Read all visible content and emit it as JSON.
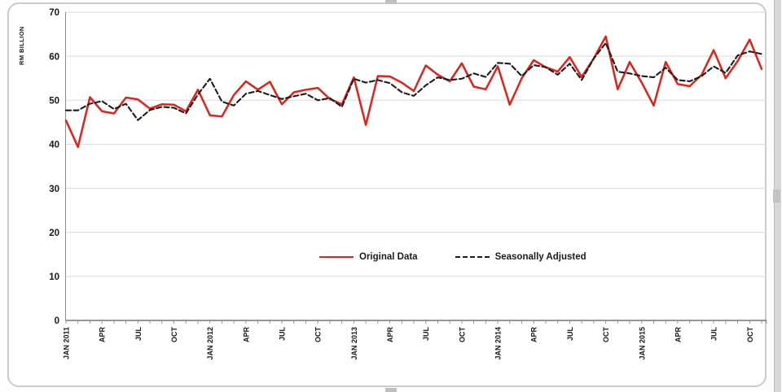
{
  "axis": {
    "y_title": "RM BILLION",
    "y_ticks": [
      0,
      10,
      20,
      30,
      40,
      50,
      60,
      70
    ],
    "x_tick_labels": [
      "JAN 2011",
      "APR",
      "JUL",
      "OCT",
      "JAN 2012",
      "APR",
      "JUL",
      "OCT",
      "JAN 2013",
      "APR",
      "JUL",
      "OCT",
      "JAN 2014",
      "APR",
      "JUL",
      "OCT",
      "JAN 2015",
      "APR",
      "JUL",
      "OCT"
    ]
  },
  "legend": {
    "original_label": "Original Data",
    "adjusted_label": "Seasonally Adjusted"
  },
  "colors": {
    "original_line": "#e32119",
    "adjusted_line": "#1c1c1c",
    "gridline": "#d9d9d9",
    "axis_line": "#8c8c8c",
    "tick": "#8c8c8c",
    "label_text": "#1a1a1a"
  },
  "chart_data": {
    "type": "line",
    "title": "",
    "xlabel": "",
    "ylabel": "RM BILLION",
    "ylim": [
      0,
      70
    ],
    "y_step": 10,
    "grid": true,
    "legend_position": "inside-plot-center-bottom",
    "x_label_every": 3,
    "categories": [
      "JAN 2011",
      "FEB 2011",
      "MAR 2011",
      "APR 2011",
      "MAY 2011",
      "JUN 2011",
      "JUL 2011",
      "AUG 2011",
      "SEP 2011",
      "OCT 2011",
      "NOV 2011",
      "DEC 2011",
      "JAN 2012",
      "FEB 2012",
      "MAR 2012",
      "APR 2012",
      "MAY 2012",
      "JUN 2012",
      "JUL 2012",
      "AUG 2012",
      "SEP 2012",
      "OCT 2012",
      "NOV 2012",
      "DEC 2012",
      "JAN 2013",
      "FEB 2013",
      "MAR 2013",
      "APR 2013",
      "MAY 2013",
      "JUN 2013",
      "JUL 2013",
      "AUG 2013",
      "SEP 2013",
      "OCT 2013",
      "NOV 2013",
      "DEC 2013",
      "JAN 2014",
      "FEB 2014",
      "MAR 2014",
      "APR 2014",
      "MAY 2014",
      "JUN 2014",
      "JUL 2014",
      "AUG 2014",
      "SEP 2014",
      "OCT 2014",
      "NOV 2014",
      "DEC 2014",
      "JAN 2015",
      "FEB 2015",
      "MAR 2015",
      "APR 2015",
      "MAY 2015",
      "JUN 2015",
      "JUL 2015",
      "AUG 2015",
      "SEP 2015",
      "OCT 2015",
      "NOV 2015"
    ],
    "series": [
      {
        "name": "Original Data",
        "style": "solid",
        "color": "#e32119",
        "values": [
          45.4,
          39.4,
          50.7,
          47.5,
          47.0,
          50.6,
          50.2,
          48.1,
          49.1,
          49.0,
          47.5,
          52.4,
          46.6,
          46.3,
          51.2,
          54.3,
          52.4,
          54.2,
          49.1,
          51.8,
          52.4,
          52.8,
          50.3,
          49.1,
          55.2,
          44.4,
          55.5,
          55.4,
          54.0,
          52.1,
          57.9,
          55.8,
          54.3,
          58.4,
          53.1,
          52.5,
          57.7,
          49.0,
          55.0,
          59.1,
          57.5,
          56.5,
          59.8,
          55.3,
          59.5,
          64.5,
          52.5,
          58.7,
          54.0,
          48.8,
          58.7,
          53.7,
          53.2,
          55.8,
          61.4,
          55.0,
          58.9,
          63.8,
          57.1
        ]
      },
      {
        "name": "Seasonally Adjusted",
        "style": "dashed",
        "color": "#1c1c1c",
        "values": [
          47.7,
          47.7,
          49.2,
          49.8,
          48.0,
          49.2,
          45.5,
          47.8,
          48.5,
          48.3,
          47.0,
          51.3,
          54.9,
          49.7,
          48.8,
          51.5,
          52.1,
          51.2,
          50.3,
          50.9,
          51.5,
          50.0,
          50.5,
          48.5,
          54.9,
          54.0,
          54.6,
          53.9,
          51.8,
          51.0,
          53.4,
          55.2,
          54.6,
          54.9,
          56.1,
          55.3,
          58.5,
          58.3,
          55.5,
          58.0,
          57.5,
          55.8,
          58.3,
          54.6,
          59.5,
          63.0,
          56.5,
          56.1,
          55.5,
          55.2,
          57.4,
          54.6,
          54.3,
          55.5,
          57.7,
          56.2,
          60.2,
          61.1,
          60.5
        ]
      }
    ]
  }
}
